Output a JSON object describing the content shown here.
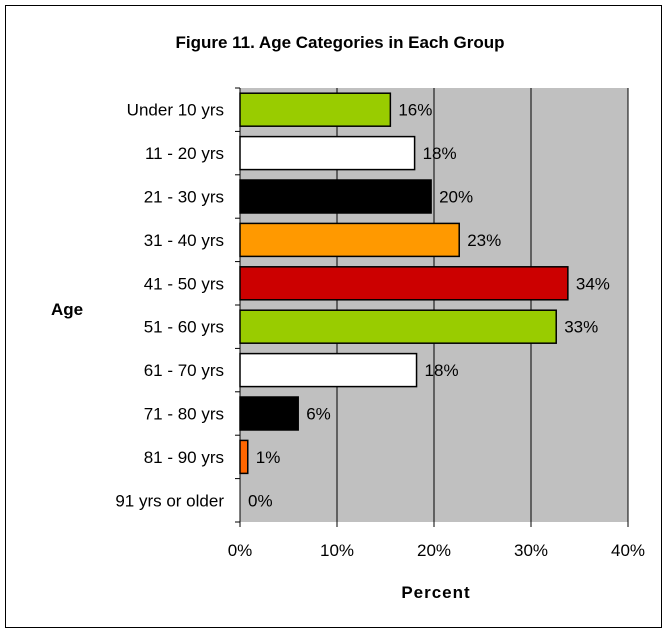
{
  "chart_data": {
    "type": "bar",
    "orientation": "horizontal",
    "title": "Figure 11.  Age Categories in Each Group",
    "xlabel": "Percent",
    "ylabel": "Age",
    "xlim": [
      0,
      40
    ],
    "x_ticks": [
      "0%",
      "10%",
      "20%",
      "30%",
      "40%"
    ],
    "grid": "vertical gridlines on",
    "plot_background": "#c0c0c0",
    "categories": [
      "Under 10 yrs",
      "11 - 20 yrs",
      "21 - 30 yrs",
      "31 - 40 yrs",
      "41 - 50 yrs",
      "51 - 60 yrs",
      "61 - 70 yrs",
      "71 - 80 yrs",
      "81 - 90 yrs",
      "91 yrs or older"
    ],
    "values": [
      15.5,
      18,
      19.7,
      22.6,
      33.8,
      32.6,
      18.2,
      6,
      0.8,
      0
    ],
    "data_labels": [
      "16%",
      "18%",
      "20%",
      "23%",
      "34%",
      "33%",
      "18%",
      "6%",
      "1%",
      "0%"
    ],
    "colors": [
      "#99cc00",
      "#ffffff",
      "#000000",
      "#ff9900",
      "#cc0000",
      "#99cc00",
      "#ffffff",
      "#000000",
      "#ff6600",
      "#ffffff"
    ]
  }
}
